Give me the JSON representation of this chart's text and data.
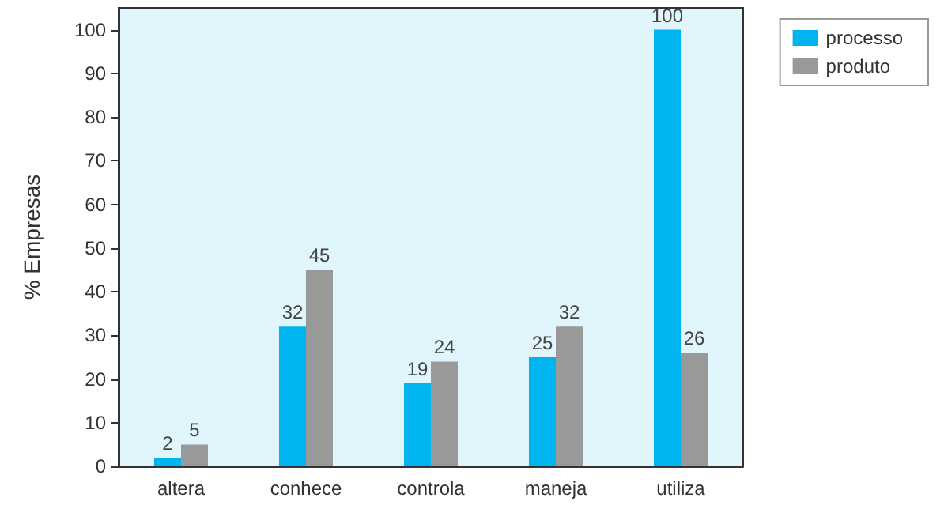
{
  "chart_data": {
    "type": "bar",
    "ylabel": "% Empresas",
    "categories": [
      "altera",
      "conhece",
      "controla",
      "maneja",
      "utiliza"
    ],
    "series": [
      {
        "name": "processo",
        "color": "#00b4ef",
        "values": [
          2,
          32,
          19,
          25,
          100
        ]
      },
      {
        "name": "produto",
        "color": "#999999",
        "values": [
          5,
          45,
          24,
          32,
          26
        ]
      }
    ],
    "ylim": [
      0,
      105
    ],
    "yticks": [
      0,
      10,
      20,
      30,
      40,
      50,
      60,
      70,
      80,
      90,
      100
    ],
    "grid": false,
    "legend": "top right",
    "data_labels": true
  }
}
